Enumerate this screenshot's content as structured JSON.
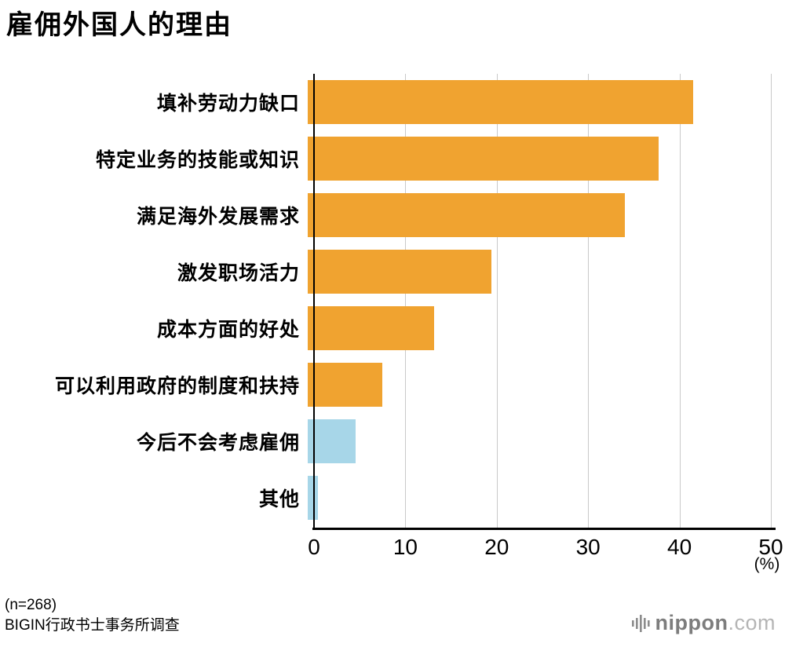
{
  "title": "雇佣外国人的理由",
  "footer": {
    "sample": "(n=268)",
    "source": "BIGIN行政书士事务所调查"
  },
  "logo": {
    "name": "nippon",
    "tld": ".com"
  },
  "chart_data": {
    "type": "bar",
    "orientation": "horizontal",
    "title": "雇佣外国人的理由",
    "categories": [
      "填补劳动力缺口",
      "特定业务的技能或知识",
      "满足海外发展需求",
      "激发职场活力",
      "成本方面的好处",
      "可以利用政府的制度和扶持",
      "今后不会考虑雇佣",
      "其他"
    ],
    "values": [
      42.2,
      38.4,
      34.7,
      20.1,
      13.8,
      8.2,
      5.2,
      1.1
    ],
    "colors": [
      "#F0A330",
      "#F0A330",
      "#F0A330",
      "#F0A330",
      "#F0A330",
      "#F0A330",
      "#A7D6E8",
      "#A7D6E8"
    ],
    "bar_color_main": "#F0A330",
    "bar_color_alt": "#A7D6E8",
    "xlabel": "",
    "ylabel": "",
    "xlim": [
      0,
      50
    ],
    "xticks": [
      0,
      10,
      20,
      30,
      40,
      50
    ],
    "xunit": "(%)",
    "grid": "vertical-light-gray",
    "legend": "none"
  }
}
